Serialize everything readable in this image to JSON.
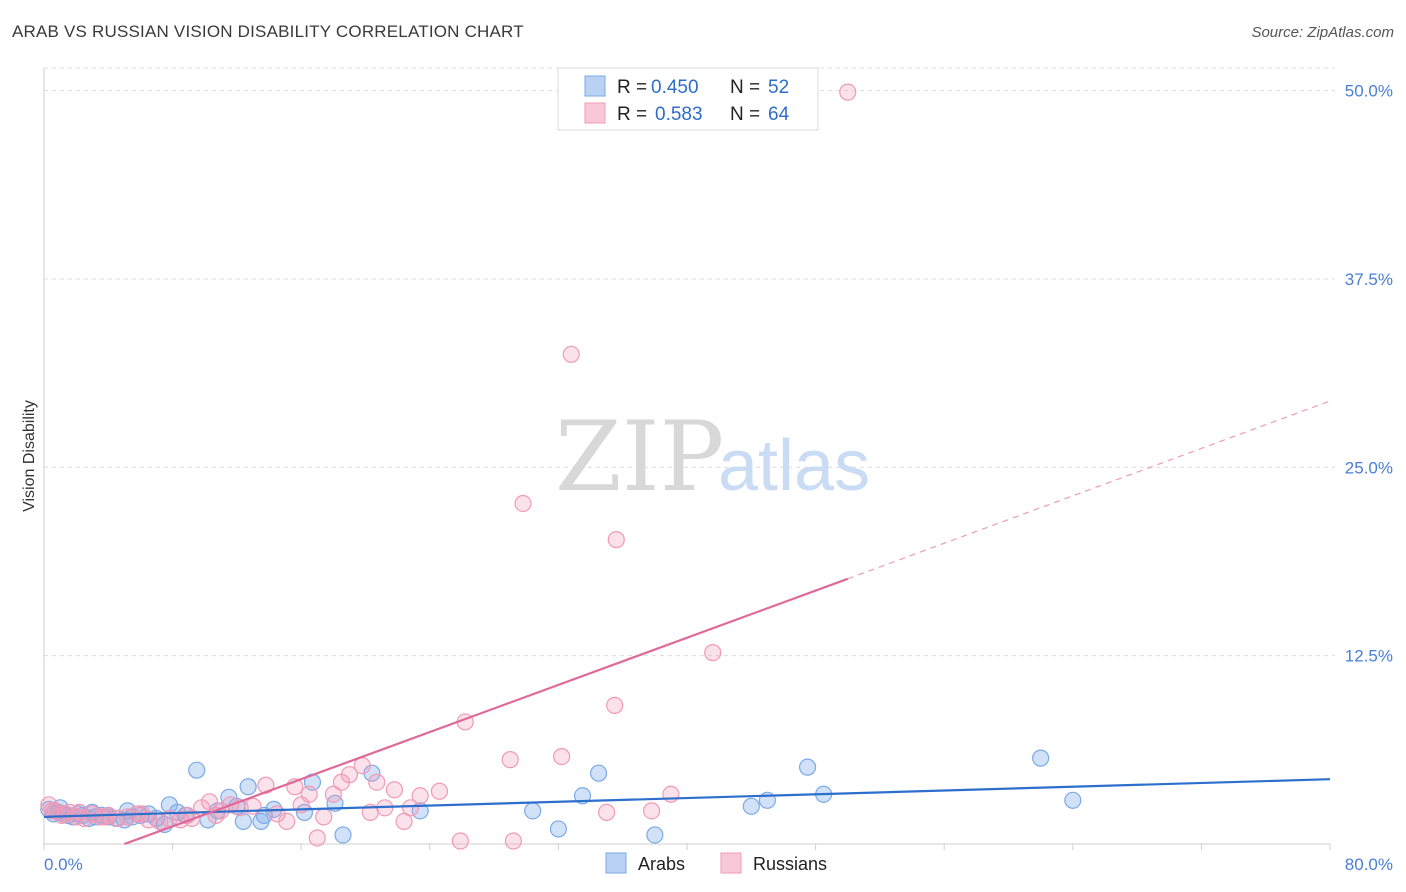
{
  "header": {
    "title": "ARAB VS RUSSIAN VISION DISABILITY CORRELATION CHART",
    "source": "Source: ZipAtlas.com"
  },
  "watermark": {
    "zip": "ZIP",
    "atlas": "atlas"
  },
  "legend": {
    "rows": [
      {
        "r_label": "R =",
        "r_value": "0.450",
        "n_label": "N =",
        "n_value": "52"
      },
      {
        "r_label": "R =",
        "r_value": "0.583",
        "n_label": "N =",
        "n_value": "64"
      }
    ]
  },
  "bottom_legend": {
    "arabs": "Arabs",
    "russians": "Russians"
  },
  "chart_data": {
    "type": "scatter",
    "title": "ARAB VS RUSSIAN VISION DISABILITY CORRELATION CHART",
    "xlabel": "",
    "ylabel": "Vision Disability",
    "xlim": [
      0,
      80
    ],
    "ylim": [
      0,
      51.5
    ],
    "x_tick_labels": [
      "0.0%",
      "80.0%"
    ],
    "y_ticks": [
      12.5,
      25.0,
      37.5,
      50.0
    ],
    "y_tick_labels": [
      "12.5%",
      "25.0%",
      "37.5%",
      "50.0%"
    ],
    "grid": "horizontal dashed",
    "legend_placement": "top-center",
    "colors": {
      "arabs": "#7aaae8",
      "russians": "#f19ab7",
      "arabs_line": "#2d6fcc",
      "russians_line": "#e0689a"
    },
    "series": [
      {
        "name": "Arabs",
        "trend": {
          "x0": 0,
          "y0": 1.8,
          "x1": 80,
          "y1": 4.3
        },
        "points": [
          [
            0.3,
            2.3
          ],
          [
            0.6,
            2.0
          ],
          [
            0.9,
            2.1
          ],
          [
            1.2,
            2.0
          ],
          [
            1.5,
            1.9
          ],
          [
            1.8,
            1.8
          ],
          [
            2.1,
            2.0
          ],
          [
            2.4,
            1.9
          ],
          [
            2.8,
            1.7
          ],
          [
            3.2,
            1.8
          ],
          [
            3.6,
            1.9
          ],
          [
            4.0,
            1.8
          ],
          [
            4.5,
            1.7
          ],
          [
            5.0,
            1.6
          ],
          [
            5.5,
            1.8
          ],
          [
            6.0,
            1.9
          ],
          [
            6.5,
            2.0
          ],
          [
            7.0,
            1.7
          ],
          [
            7.5,
            1.3
          ],
          [
            7.8,
            2.6
          ],
          [
            8.3,
            2.1
          ],
          [
            8.8,
            1.9
          ],
          [
            9.5,
            4.9
          ],
          [
            10.2,
            1.6
          ],
          [
            10.8,
            2.2
          ],
          [
            11.5,
            3.1
          ],
          [
            12.0,
            2.5
          ],
          [
            12.4,
            1.5
          ],
          [
            12.7,
            3.8
          ],
          [
            13.5,
            1.5
          ],
          [
            13.7,
            1.9
          ],
          [
            14.3,
            2.3
          ],
          [
            16.2,
            2.1
          ],
          [
            16.7,
            4.1
          ],
          [
            18.1,
            2.7
          ],
          [
            18.6,
            0.6
          ],
          [
            20.4,
            4.7
          ],
          [
            23.4,
            2.2
          ],
          [
            30.4,
            2.2
          ],
          [
            32.0,
            1.0
          ],
          [
            33.5,
            3.2
          ],
          [
            34.5,
            4.7
          ],
          [
            38.0,
            0.6
          ],
          [
            44.0,
            2.5
          ],
          [
            45.0,
            2.9
          ],
          [
            47.5,
            5.1
          ],
          [
            48.5,
            3.3
          ],
          [
            62.0,
            5.7
          ],
          [
            64.0,
            2.9
          ],
          [
            1.0,
            2.4
          ],
          [
            3.0,
            2.1
          ],
          [
            5.2,
            2.2
          ]
        ]
      },
      {
        "name": "Russians",
        "trend": {
          "x0": 5,
          "y0": 0,
          "x1": 50,
          "y1": 17.6,
          "dashed_to": {
            "x": 80,
            "y": 29.4
          }
        },
        "points": [
          [
            0.3,
            2.6
          ],
          [
            0.7,
            2.2
          ],
          [
            1.1,
            1.9
          ],
          [
            1.6,
            2.1
          ],
          [
            2.0,
            1.8
          ],
          [
            2.5,
            1.7
          ],
          [
            3.0,
            2.0
          ],
          [
            3.5,
            1.8
          ],
          [
            4.0,
            1.9
          ],
          [
            4.6,
            1.7
          ],
          [
            5.2,
            1.8
          ],
          [
            5.8,
            2.0
          ],
          [
            6.5,
            1.6
          ],
          [
            7.2,
            1.5
          ],
          [
            7.8,
            1.7
          ],
          [
            8.5,
            1.6
          ],
          [
            9.2,
            1.7
          ],
          [
            9.8,
            2.4
          ],
          [
            10.3,
            2.8
          ],
          [
            11.0,
            2.2
          ],
          [
            11.6,
            2.6
          ],
          [
            12.2,
            2.4
          ],
          [
            13.0,
            2.5
          ],
          [
            13.8,
            3.9
          ],
          [
            14.5,
            2.0
          ],
          [
            15.1,
            1.5
          ],
          [
            15.6,
            3.8
          ],
          [
            16.0,
            2.6
          ],
          [
            16.5,
            3.3
          ],
          [
            17.0,
            0.4
          ],
          [
            17.4,
            1.8
          ],
          [
            18.0,
            3.3
          ],
          [
            18.5,
            4.1
          ],
          [
            19.0,
            4.6
          ],
          [
            19.8,
            5.2
          ],
          [
            20.3,
            2.1
          ],
          [
            20.7,
            4.1
          ],
          [
            21.2,
            2.4
          ],
          [
            21.8,
            3.6
          ],
          [
            22.4,
            1.5
          ],
          [
            22.8,
            2.4
          ],
          [
            23.4,
            3.2
          ],
          [
            24.6,
            3.5
          ],
          [
            25.9,
            0.2
          ],
          [
            26.2,
            8.1
          ],
          [
            29.0,
            5.6
          ],
          [
            29.2,
            0.2
          ],
          [
            29.8,
            22.6
          ],
          [
            32.2,
            5.8
          ],
          [
            32.8,
            32.5
          ],
          [
            35.0,
            2.1
          ],
          [
            35.5,
            9.2
          ],
          [
            35.6,
            20.2
          ],
          [
            37.8,
            2.2
          ],
          [
            39.0,
            3.3
          ],
          [
            41.6,
            12.7
          ],
          [
            50.0,
            49.9
          ],
          [
            0.5,
            2.2
          ],
          [
            1.3,
            2.0
          ],
          [
            2.2,
            2.1
          ],
          [
            3.8,
            1.8
          ],
          [
            6.1,
            2.0
          ],
          [
            8.9,
            1.9
          ],
          [
            10.7,
            1.9
          ]
        ]
      }
    ]
  }
}
